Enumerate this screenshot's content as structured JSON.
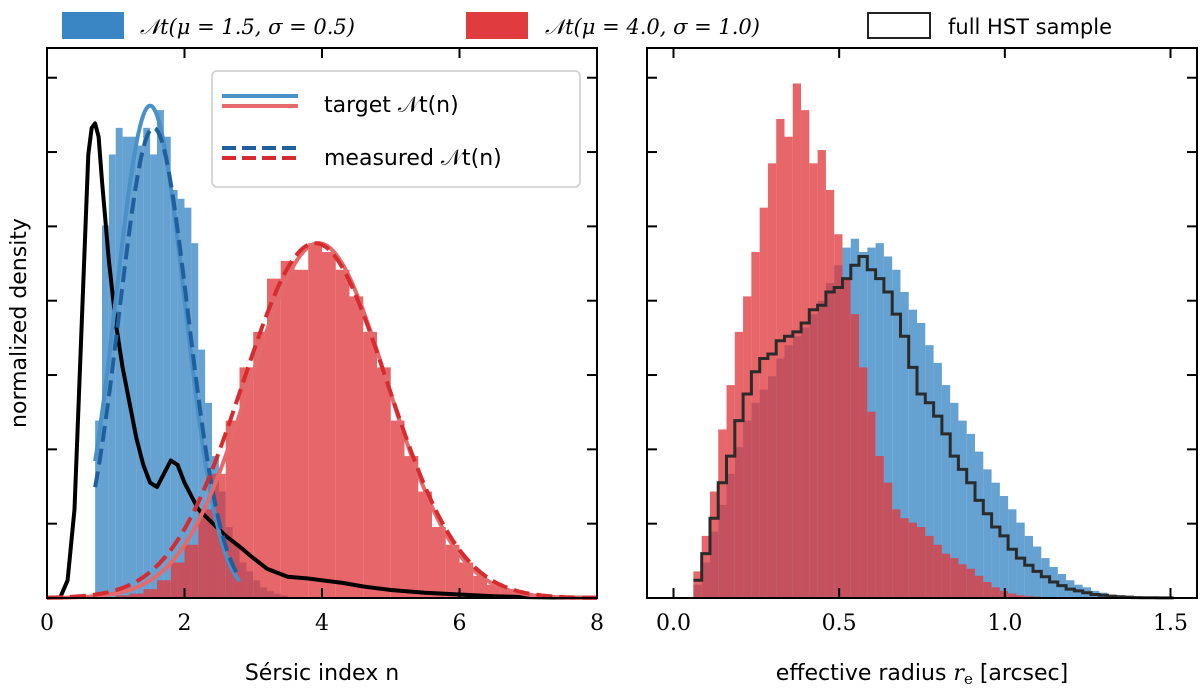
{
  "figure": {
    "top_legend": [
      {
        "label": "𝒩t(μ = 1.5, σ = 0.5)",
        "color": "#3a86c4",
        "kind": "patch"
      },
      {
        "label": "𝒩t(μ = 4.0, σ = 1.0)",
        "color": "#e03b3f",
        "kind": "patch"
      },
      {
        "label": "full HST sample",
        "color": "#222222",
        "kind": "outline"
      }
    ]
  },
  "chart_data": [
    {
      "type": "histogram+line",
      "ylabel": "normalized density",
      "xlabel": "Sérsic index n",
      "xlim": [
        0,
        8
      ],
      "xticks": [
        0,
        2,
        4,
        6,
        8
      ],
      "ylim": [
        0,
        0.62
      ],
      "yticks_count": 7,
      "inner_legend": {
        "position": "top-right",
        "entries": [
          {
            "label": "target 𝒩t(n)",
            "style": "solid"
          },
          {
            "label": "measured 𝒩t(n)",
            "style": "dashed"
          }
        ]
      },
      "series": [
        {
          "name": "hist 𝒩t(μ = 1.5, σ = 0.5)",
          "kind": "hist",
          "color": "#3a86c4",
          "bin_start": 0.7,
          "bin_width": 0.1,
          "values": [
            0.2,
            0.42,
            0.5,
            0.53,
            0.52,
            0.52,
            0.51,
            0.53,
            0.5,
            0.55,
            0.52,
            0.46,
            0.45,
            0.44,
            0.4,
            0.28,
            0.22,
            0.16,
            0.12,
            0.08,
            0.06,
            0.04,
            0.03,
            0.02,
            0.012,
            0.008,
            0.005,
            0.003
          ]
        },
        {
          "name": "hist 𝒩t(μ = 4.0, σ = 1.0)",
          "kind": "hist",
          "color": "#e03b3f",
          "bin_start": 1.0,
          "bin_width": 0.2,
          "values": [
            0.003,
            0.005,
            0.01,
            0.02,
            0.04,
            0.06,
            0.1,
            0.14,
            0.2,
            0.26,
            0.3,
            0.36,
            0.38,
            0.37,
            0.4,
            0.39,
            0.37,
            0.34,
            0.3,
            0.26,
            0.2,
            0.16,
            0.12,
            0.08,
            0.06,
            0.04,
            0.025,
            0.015,
            0.01,
            0.006,
            0.004,
            0.003,
            0.002,
            0.002,
            0.002
          ]
        },
        {
          "name": "full HST sample (n)",
          "kind": "line",
          "color": "#000000",
          "x": [
            0.2,
            0.3,
            0.4,
            0.5,
            0.6,
            0.65,
            0.7,
            0.75,
            0.8,
            0.9,
            1.0,
            1.1,
            1.2,
            1.3,
            1.4,
            1.5,
            1.6,
            1.7,
            1.8,
            1.9,
            2.0,
            2.1,
            2.2,
            2.4,
            2.6,
            2.8,
            3.0,
            3.2,
            3.5,
            3.8,
            4.0,
            4.3,
            4.6,
            5.0,
            5.5,
            6.0,
            6.5,
            7.0,
            7.5,
            8.0
          ],
          "y": [
            0.002,
            0.02,
            0.1,
            0.3,
            0.5,
            0.53,
            0.535,
            0.52,
            0.47,
            0.38,
            0.31,
            0.26,
            0.22,
            0.18,
            0.15,
            0.13,
            0.125,
            0.14,
            0.155,
            0.15,
            0.13,
            0.115,
            0.1,
            0.085,
            0.07,
            0.058,
            0.045,
            0.033,
            0.024,
            0.022,
            0.02,
            0.017,
            0.013,
            0.009,
            0.006,
            0.004,
            0.002,
            0.001,
            0.0005,
            0.0002
          ]
        },
        {
          "name": "target 𝒩t(μ = 1.5, σ = 0.5)",
          "kind": "normal",
          "style": "solid",
          "color": "#4a90c9",
          "mu": 1.5,
          "sigma": 0.5,
          "scale": 0.555,
          "xmin": 0.7,
          "xmax": 2.8
        },
        {
          "name": "measured 𝒩t(μ = 1.5, σ = 0.5)",
          "kind": "normal",
          "style": "dashed",
          "color": "#1f5f9c",
          "mu": 1.55,
          "sigma": 0.5,
          "scale": 0.53,
          "xmin": 0.7,
          "xmax": 2.8
        },
        {
          "name": "target 𝒩t(μ = 4.0, σ = 1.0)",
          "kind": "normal",
          "style": "solid",
          "color": "#e46a6c",
          "mu": 3.95,
          "sigma": 1.0,
          "scale": 0.4,
          "xmin": 0,
          "xmax": 8
        },
        {
          "name": "measured 𝒩t(μ = 4.0, σ = 1.0)",
          "kind": "normal",
          "style": "dashed",
          "color": "#d62b2f",
          "mu": 3.9,
          "sigma": 1.05,
          "scale": 0.4,
          "xmin": 0,
          "xmax": 8
        }
      ]
    },
    {
      "type": "histogram",
      "xlabel": "effective radius r_e [arcsec]",
      "xlabel_parts": {
        "prefix": "effective radius ",
        "symbol": "r",
        "subscript": "e",
        "suffix": " [arcsec]"
      },
      "xlim": [
        -0.08,
        1.58
      ],
      "xticks": [
        0.0,
        0.5,
        1.0,
        1.5
      ],
      "xtick_labels": [
        "0.0",
        "0.5",
        "1.0",
        "1.5"
      ],
      "ylim": [
        0,
        6.2
      ],
      "yticks_count": 7,
      "series": [
        {
          "name": "𝒩t(μ = 1.5, σ = 0.5)",
          "kind": "hist",
          "color": "#3a86c4",
          "bin_start": 0.06,
          "bin_width": 0.025,
          "values": [
            0.15,
            0.4,
            0.75,
            1.05,
            1.4,
            1.7,
            2.0,
            2.2,
            2.35,
            2.5,
            2.7,
            2.85,
            2.95,
            3.05,
            3.2,
            3.35,
            3.55,
            3.75,
            3.95,
            4.05,
            3.9,
            3.95,
            4.0,
            3.85,
            3.7,
            3.45,
            3.25,
            3.1,
            2.85,
            2.65,
            2.4,
            2.2,
            2.0,
            1.85,
            1.65,
            1.45,
            1.3,
            1.15,
            1.0,
            0.85,
            0.7,
            0.58,
            0.45,
            0.35,
            0.27,
            0.2,
            0.15,
            0.12,
            0.08,
            0.06,
            0.04,
            0.03,
            0.02,
            0.01
          ]
        },
        {
          "name": "𝒩t(μ = 4.0, σ = 1.0)",
          "kind": "hist",
          "color": "#e03b3f",
          "bin_start": 0.06,
          "bin_width": 0.025,
          "values": [
            0.3,
            0.7,
            1.2,
            1.9,
            2.4,
            3.0,
            3.4,
            3.9,
            4.4,
            4.9,
            5.4,
            5.2,
            5.8,
            5.5,
            4.9,
            5.05,
            4.6,
            4.1,
            3.6,
            3.2,
            2.6,
            2.1,
            1.6,
            1.3,
            1.0,
            0.9,
            0.85,
            0.8,
            0.7,
            0.6,
            0.5,
            0.45,
            0.38,
            0.33,
            0.25,
            0.18,
            0.12,
            0.08,
            0.05,
            0.03,
            0.02,
            0.015,
            0.01,
            0.008
          ]
        },
        {
          "name": "full HST sample",
          "kind": "step",
          "color": "#2b2b2b",
          "bin_start": 0.06,
          "bin_width": 0.025,
          "values": [
            0.2,
            0.5,
            0.9,
            1.3,
            1.6,
            2.0,
            2.3,
            2.55,
            2.7,
            2.75,
            2.9,
            2.95,
            3.0,
            3.1,
            3.25,
            3.3,
            3.45,
            3.5,
            3.6,
            3.75,
            3.85,
            3.7,
            3.6,
            3.45,
            3.2,
            2.95,
            2.6,
            2.3,
            2.2,
            2.05,
            1.85,
            1.6,
            1.45,
            1.3,
            1.1,
            0.95,
            0.8,
            0.7,
            0.55,
            0.45,
            0.37,
            0.3,
            0.24,
            0.18,
            0.14,
            0.1,
            0.08,
            0.06,
            0.04,
            0.03,
            0.02,
            0.015,
            0.01,
            0.005,
            0.003,
            0.002,
            0.001,
            0.001
          ]
        }
      ]
    }
  ]
}
